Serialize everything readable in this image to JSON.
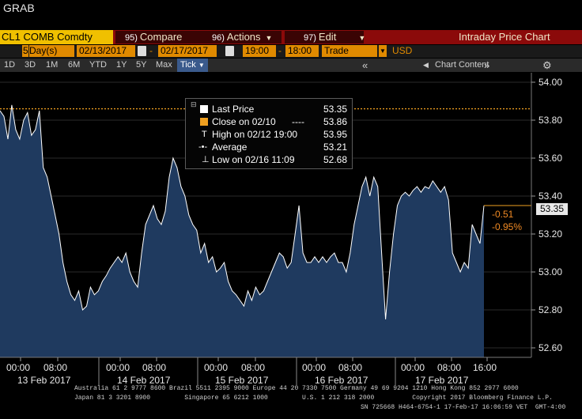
{
  "title": "GRAB",
  "menu": {
    "ticker": "CL1 COMB Comdty",
    "compare_num": "95)",
    "compare_label": "Compare",
    "actions_num": "96)",
    "actions_label": "Actions",
    "edit_num": "97)",
    "edit_label": "Edit",
    "panel_title": "Intraday Price Chart"
  },
  "range": {
    "period_value": "5",
    "period_unit": "Day(s)",
    "start_date": "02/13/2017",
    "end_date": "02/17/2017",
    "start_time": "19:00",
    "end_time": "18:00",
    "market": "Trade",
    "currency": "USD"
  },
  "toolbar": {
    "intervals": [
      "1D",
      "3D",
      "1M",
      "6M",
      "YTD",
      "1Y",
      "5Y",
      "Max"
    ],
    "tick_label": "Tick",
    "chart_content_label": "Chart Content"
  },
  "legend": {
    "last_label": "Last Price",
    "last_value": "53.35",
    "close_label": "Close on 02/10",
    "close_value": "53.86",
    "high_label": "High on 02/12 19:00",
    "high_value": "53.95",
    "avg_label": "Average",
    "avg_value": "53.21",
    "low_label": "Low on 02/16 11:09",
    "low_value": "52.68"
  },
  "price_tag": "53.35",
  "change": "-0.51",
  "change_pct": "-0.95%",
  "colors": {
    "accent_red": "#8b0a0a",
    "accent_orange": "#e08a00",
    "area_fill": "#1f3a5f",
    "close_line": "#f0a020"
  },
  "chart_data": {
    "type": "area",
    "ylim": [
      52.55,
      54.05
    ],
    "yticks": [
      "54.00",
      "53.80",
      "53.60",
      "53.40",
      "53.20",
      "53.00",
      "52.80",
      "52.60"
    ],
    "close_reference": 53.86,
    "x_time_labels": [
      "00:00",
      "08:00",
      "00:00",
      "08:00",
      "00:00",
      "08:00",
      "00:00",
      "08:00",
      "00:00",
      "08:00",
      "16:00"
    ],
    "x_day_labels": [
      "13 Feb 2017",
      "14 Feb 2017",
      "15 Feb 2017",
      "16 Feb 2017",
      "17 Feb 2017"
    ],
    "series": [
      {
        "values": [
          53.85,
          53.82,
          53.7,
          53.88,
          53.75,
          53.7,
          53.8,
          53.84,
          53.72,
          53.75,
          53.85,
          53.55,
          53.5,
          53.4,
          53.3,
          53.2,
          53.05,
          52.95,
          52.88,
          52.85,
          52.9,
          52.8,
          52.82,
          52.92,
          52.88,
          52.9,
          52.95,
          52.98,
          53.02,
          53.05,
          53.08,
          53.05,
          53.1,
          53.0,
          52.95,
          52.92,
          53.1,
          53.25,
          53.3,
          53.35,
          53.28,
          53.25,
          53.32,
          53.5,
          53.6,
          53.55,
          53.45,
          53.4,
          53.3,
          53.25,
          53.22,
          53.1,
          53.15,
          53.05,
          53.08,
          53.0,
          53.02,
          53.05,
          52.95,
          52.9,
          52.88,
          52.85,
          52.82,
          52.9,
          52.85,
          52.92,
          52.88,
          52.9,
          52.95,
          53.0,
          53.05,
          53.1,
          53.08,
          53.02,
          53.05,
          53.2,
          53.35,
          53.1,
          53.05,
          53.05,
          53.08,
          53.05,
          53.08,
          53.05,
          53.08,
          53.1,
          53.05,
          53.05,
          53.0,
          53.1,
          53.25,
          53.35,
          53.45,
          53.5,
          53.4,
          53.5,
          53.45,
          53.1,
          52.75,
          53.0,
          53.2,
          53.35,
          53.4,
          53.42,
          53.4,
          53.43,
          53.45,
          53.42,
          53.45,
          53.44,
          53.48,
          53.45,
          53.42,
          53.45,
          53.38,
          53.1,
          53.05,
          53.0,
          53.05,
          53.02,
          53.25,
          53.2,
          53.15,
          53.35
        ]
      }
    ]
  },
  "footer": {
    "line1": "Australia 61 2 9777 8600 Brazil 5511 2395 9000 Europe 44 20 7330 7500 Germany 49 69 9204 1210 Hong Kong 852 2977 6000",
    "line2": "Japan 81 3 3201 8900         Singapore 65 6212 1000         U.S. 1 212 318 2000          Copyright 2017 Bloomberg Finance L.P.",
    "line3": "SN 725668 H464-6754-1 17-Feb-17 16:06:59 VET  GMT-4:00"
  }
}
